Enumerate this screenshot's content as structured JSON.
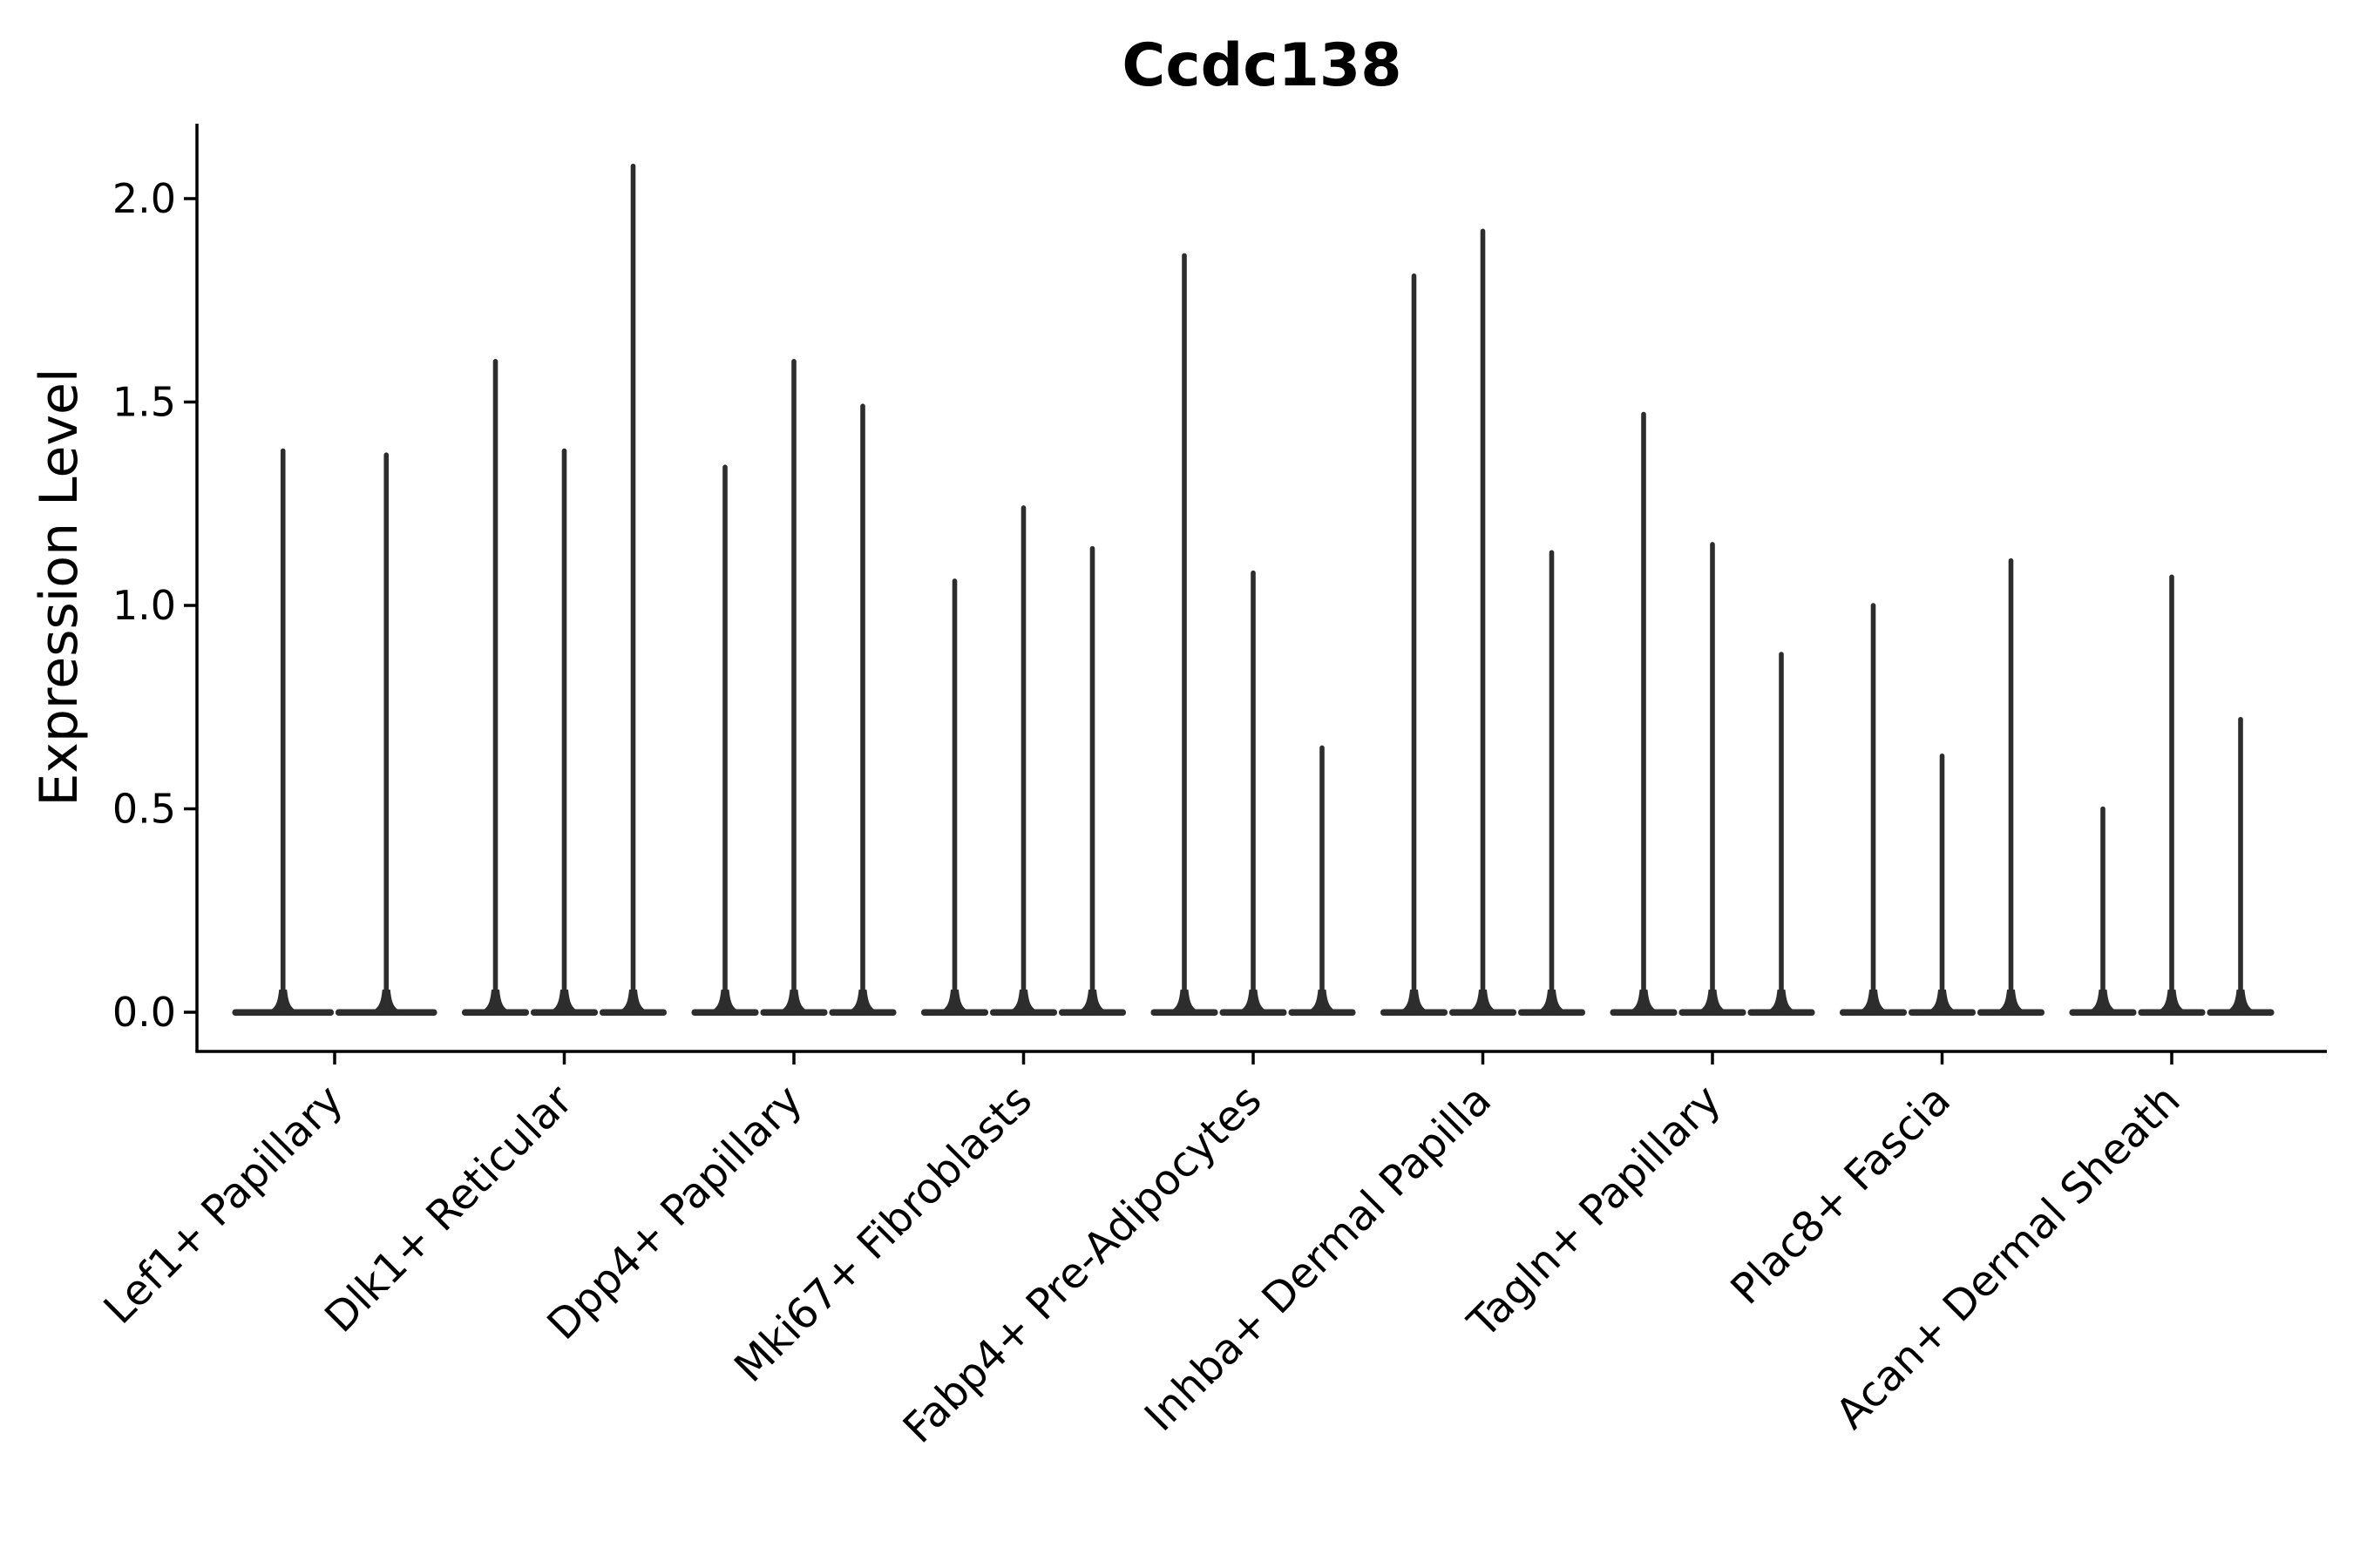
{
  "chart_data": {
    "type": "violin",
    "title": "Ccdc138",
    "xlabel": "",
    "ylabel": "Expression Level",
    "legend": "none",
    "grid": false,
    "ylim": [
      -0.1,
      2.18
    ],
    "yticks": [
      "0.0",
      "0.5",
      "1.0",
      "1.5",
      "2.0"
    ],
    "ytick_values": [
      0.0,
      0.5,
      1.0,
      1.5,
      2.0
    ],
    "categories": [
      "Lef1+ Papillary",
      "Dlk1+ Reticular",
      "Dpp4+ Papillary",
      "Mki67+ Fibroblasts",
      "Fabp4+ Pre-Adipocytes",
      "Inhba+ Dermal Papilla",
      "Tagln+ Papillary",
      "Plac8+ Fascia",
      "Acan+ Dermal Sheath"
    ],
    "groups": [
      {
        "label": "Lef1+ Papillary",
        "violin_peaks": [
          1.38,
          1.37
        ]
      },
      {
        "label": "Dlk1+ Reticular",
        "violin_peaks": [
          1.6,
          1.38,
          2.08
        ]
      },
      {
        "label": "Dpp4+ Papillary",
        "violin_peaks": [
          1.34,
          1.6,
          1.49
        ]
      },
      {
        "label": "Mki67+ Fibroblasts",
        "violin_peaks": [
          1.06,
          1.24,
          1.14
        ]
      },
      {
        "label": "Fabp4+ Pre-Adipocytes",
        "violin_peaks": [
          1.86,
          1.08,
          0.65
        ]
      },
      {
        "label": "Inhba+ Dermal Papilla",
        "violin_peaks": [
          1.81,
          1.92,
          1.13
        ]
      },
      {
        "label": "Tagln+ Papillary",
        "violin_peaks": [
          1.47,
          1.15,
          0.88
        ]
      },
      {
        "label": "Plac8+ Fascia",
        "violin_peaks": [
          1.0,
          0.63,
          1.11
        ]
      },
      {
        "label": "Acan+ Dermal Sheath",
        "violin_peaks": [
          0.5,
          1.07,
          0.72
        ]
      }
    ],
    "colors": {
      "violin": "#2d2d2d",
      "spine": "#000000",
      "text": "#000000",
      "background": "#ffffff"
    },
    "description": "Needle-like violin plot of Ccdc138 expression; each violin has a wide flat base at 0 and a thin spike rising to its maximum expression value."
  }
}
